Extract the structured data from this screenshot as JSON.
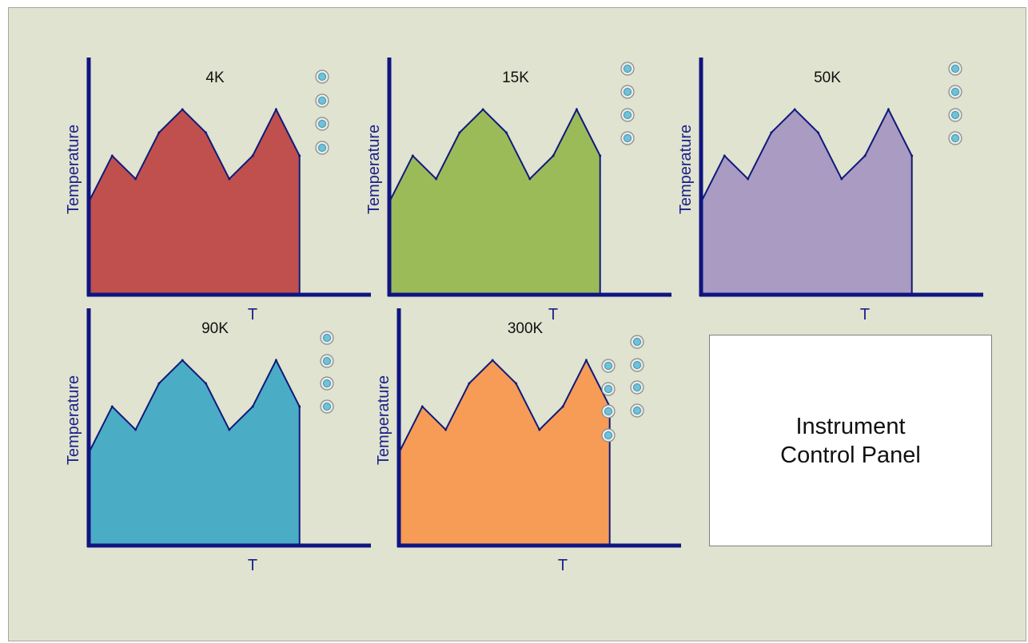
{
  "chart_data": [
    {
      "type": "area",
      "title": "4K",
      "xlabel": "T",
      "ylabel": "Temperature",
      "color": "#c0504d",
      "values": [
        0.4,
        0.6,
        0.5,
        0.7,
        0.8,
        0.7,
        0.5,
        0.6,
        0.8,
        0.6
      ],
      "ylim": [
        0,
        1
      ],
      "radio_count": 4
    },
    {
      "type": "area",
      "title": "15K",
      "xlabel": "T",
      "ylabel": "Temperature",
      "color": "#9bbb59",
      "values": [
        0.4,
        0.6,
        0.5,
        0.7,
        0.8,
        0.7,
        0.5,
        0.6,
        0.8,
        0.6
      ],
      "ylim": [
        0,
        1
      ],
      "radio_count": 4
    },
    {
      "type": "area",
      "title": "50K",
      "xlabel": "T",
      "ylabel": "Temperature",
      "color": "#a99bc1",
      "values": [
        0.4,
        0.6,
        0.5,
        0.7,
        0.8,
        0.7,
        0.5,
        0.6,
        0.8,
        0.6
      ],
      "ylim": [
        0,
        1
      ],
      "radio_count": 4
    },
    {
      "type": "area",
      "title": "90K",
      "xlabel": "T",
      "ylabel": "Temperature",
      "color": "#4bacc6",
      "values": [
        0.4,
        0.6,
        0.5,
        0.7,
        0.8,
        0.7,
        0.5,
        0.6,
        0.8,
        0.6
      ],
      "ylim": [
        0,
        1
      ],
      "radio_count": 4
    },
    {
      "type": "area",
      "title": "300K",
      "xlabel": "T",
      "ylabel": "Temperature",
      "color": "#f79c56",
      "values": [
        0.4,
        0.6,
        0.5,
        0.7,
        0.8,
        0.7,
        0.5,
        0.6,
        0.8,
        0.6
      ],
      "ylim": [
        0,
        1
      ],
      "radio_count": 8
    }
  ],
  "control_panel": {
    "line1": "Instrument",
    "line2": "Control Panel"
  }
}
